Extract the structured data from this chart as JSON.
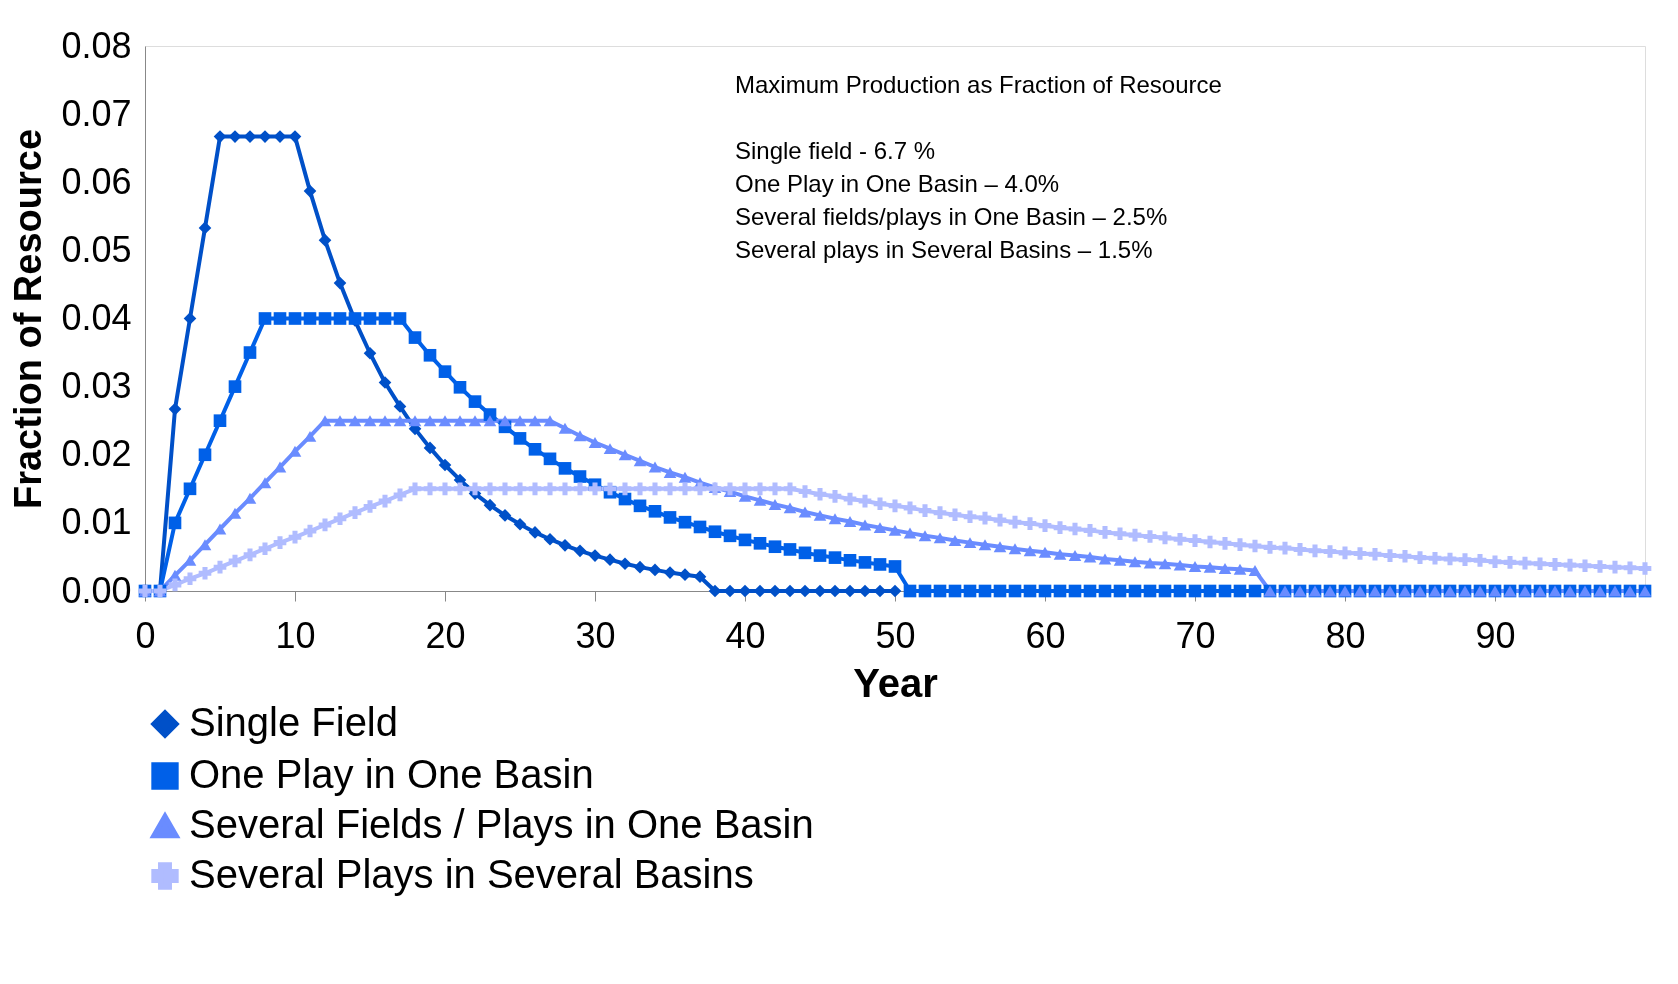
{
  "chart_data": {
    "type": "line",
    "xlabel": "Year",
    "ylabel": "Fraction of Resource",
    "x": [
      0,
      1,
      2,
      3,
      4,
      5,
      6,
      7,
      8,
      9,
      10,
      11,
      12,
      13,
      14,
      15,
      16,
      17,
      18,
      19,
      20,
      21,
      22,
      23,
      24,
      25,
      26,
      27,
      28,
      29,
      30,
      31,
      32,
      33,
      34,
      35,
      36,
      37,
      38,
      39,
      40,
      41,
      42,
      43,
      44,
      45,
      46,
      47,
      48,
      49,
      50,
      51,
      52,
      53,
      54,
      55,
      56,
      57,
      58,
      59,
      60,
      61,
      62,
      63,
      64,
      65,
      66,
      67,
      68,
      69,
      70,
      71,
      72,
      73,
      74,
      75,
      76,
      77,
      78,
      79,
      80,
      81,
      82,
      83,
      84,
      85,
      86,
      87,
      88,
      89,
      90,
      91,
      92,
      93,
      94,
      95,
      96,
      97,
      98,
      99,
      100
    ],
    "series": [
      {
        "name": "Single Field",
        "color": "#0050c8",
        "marker": "diamond",
        "values": [
          0,
          0,
          0.0267,
          0.04,
          0.0533,
          0.0667,
          0.0667,
          0.0667,
          0.0667,
          0.0667,
          0.0667,
          0.0587,
          0.0515,
          0.0452,
          0.0397,
          0.0349,
          0.0306,
          0.0271,
          0.0238,
          0.021,
          0.0185,
          0.0163,
          0.0143,
          0.0126,
          0.0111,
          0.0098,
          0.0086,
          0.0076,
          0.0067,
          0.0059,
          0.0052,
          0.0046,
          0.004,
          0.0035,
          0.0031,
          0.0027,
          0.0024,
          0.0021,
          0,
          0,
          0,
          0,
          0,
          0,
          0,
          0,
          0,
          0,
          0,
          0,
          0,
          null,
          null,
          null,
          null,
          null,
          null,
          null,
          null,
          null,
          null,
          null,
          null,
          null,
          null,
          null,
          null,
          null,
          null,
          null,
          null,
          null,
          null,
          null,
          null,
          null,
          null,
          null,
          null,
          null,
          null,
          null,
          null,
          null,
          null,
          null,
          null,
          null,
          null,
          null,
          null,
          null,
          null,
          null,
          null,
          null,
          null,
          null,
          null,
          null,
          null
        ]
      },
      {
        "name": "One Play in One Basin",
        "color": "#0060e8",
        "marker": "square",
        "values": [
          0,
          0,
          0.01,
          0.015,
          0.02,
          0.025,
          0.03,
          0.035,
          0.04,
          0.04,
          0.04,
          0.04,
          0.04,
          0.04,
          0.04,
          0.04,
          0.04,
          0.04,
          0.0372,
          0.0346,
          0.0322,
          0.0299,
          0.0278,
          0.0259,
          0.0241,
          0.0224,
          0.0208,
          0.0194,
          0.018,
          0.0168,
          0.0156,
          0.0145,
          0.0135,
          0.0125,
          0.0117,
          0.0108,
          0.0101,
          0.0094,
          0.0087,
          0.0081,
          0.0075,
          0.007,
          0.0065,
          0.0061,
          0.0056,
          0.0052,
          0.0049,
          0.0045,
          0.0042,
          0.0039,
          0.0036,
          0,
          0,
          0,
          0,
          0,
          0,
          0,
          0,
          0,
          0,
          0,
          0,
          0,
          0,
          0,
          0,
          0,
          0,
          0,
          0,
          0,
          0,
          0,
          0,
          0,
          0,
          0,
          0,
          0,
          0,
          0,
          0,
          0,
          0,
          0,
          0,
          0,
          0,
          0,
          0,
          0,
          0,
          0,
          0,
          0,
          0,
          0,
          0,
          0,
          0
        ]
      },
      {
        "name": "Several Fields / Plays in One Basin",
        "color": "#6a8cff",
        "marker": "triangle",
        "values": [
          0,
          0,
          0.0023,
          0.0045,
          0.0068,
          0.0091,
          0.0114,
          0.0136,
          0.0159,
          0.0182,
          0.0205,
          0.0227,
          0.025,
          0.025,
          0.025,
          0.025,
          0.025,
          0.025,
          0.025,
          0.025,
          0.025,
          0.025,
          0.025,
          0.025,
          0.025,
          0.025,
          0.025,
          0.025,
          0.0239,
          0.0228,
          0.0218,
          0.0209,
          0.02,
          0.0191,
          0.0182,
          0.0174,
          0.0167,
          0.0159,
          0.0152,
          0.0146,
          0.0139,
          0.0133,
          0.0127,
          0.0122,
          0.0116,
          0.0111,
          0.0106,
          0.0102,
          0.0097,
          0.0093,
          0.0089,
          0.0085,
          0.0081,
          0.0078,
          0.0074,
          0.0071,
          0.0068,
          0.0065,
          0.0062,
          0.0059,
          0.0057,
          0.0054,
          0.0052,
          0.005,
          0.0047,
          0.0045,
          0.0043,
          0.0041,
          0.004,
          0.0038,
          0.0036,
          0.0035,
          0.0033,
          0.0032,
          0.003,
          0,
          0,
          0,
          0,
          0,
          0,
          0,
          0,
          0,
          0,
          0,
          0,
          0,
          0,
          0,
          0,
          0,
          0,
          0,
          0,
          0,
          0,
          0,
          0,
          0,
          0
        ]
      },
      {
        "name": "Several Plays in Several Basins",
        "color": "#b0bcff",
        "marker": "cross",
        "values": [
          0,
          0,
          0.0009,
          0.0018,
          0.0026,
          0.0035,
          0.0044,
          0.0053,
          0.0062,
          0.0071,
          0.0079,
          0.0088,
          0.0097,
          0.0106,
          0.0115,
          0.0124,
          0.0132,
          0.0141,
          0.015,
          0.015,
          0.015,
          0.015,
          0.015,
          0.015,
          0.015,
          0.015,
          0.015,
          0.015,
          0.015,
          0.015,
          0.015,
          0.015,
          0.015,
          0.015,
          0.015,
          0.015,
          0.015,
          0.015,
          0.015,
          0.015,
          0.015,
          0.015,
          0.015,
          0.015,
          0.0146,
          0.0142,
          0.0139,
          0.0135,
          0.0132,
          0.0128,
          0.0125,
          0.0122,
          0.0118,
          0.0115,
          0.0112,
          0.0109,
          0.0107,
          0.0104,
          0.0101,
          0.0099,
          0.0096,
          0.0093,
          0.0091,
          0.0089,
          0.0086,
          0.0084,
          0.0082,
          0.008,
          0.0078,
          0.0076,
          0.0074,
          0.0072,
          0.007,
          0.0068,
          0.0066,
          0.0064,
          0.0063,
          0.0061,
          0.0059,
          0.0058,
          0.0056,
          0.0055,
          0.0054,
          0.0052,
          0.0051,
          0.0049,
          0.0048,
          0.0047,
          0.0046,
          0.0045,
          0.0043,
          0.0042,
          0.0041,
          0.004,
          0.0039,
          0.0038,
          0.0037,
          0.0036,
          0.0035,
          0.0034,
          0.0033
        ]
      }
    ],
    "xlim": [
      0,
      100
    ],
    "xticks": [
      0,
      10,
      20,
      30,
      40,
      50,
      60,
      70,
      80,
      90
    ],
    "ylim": [
      0,
      0.08
    ],
    "yticks": [
      {
        "value": 0,
        "label": "0.00"
      },
      0.01,
      0.02,
      0.03,
      0.04,
      0.05,
      0.06,
      0.07,
      0.08
    ],
    "grid": false,
    "legend": "bottom",
    "line_style": "solid",
    "annotations": [
      "Maximum Production as Fraction of Resource",
      "Single field -  6.7 %",
      "One Play in One Basin – 4.0%",
      "Several fields/plays in One Basin – 2.5%",
      "Several plays in Several Basins – 1.5%"
    ]
  }
}
